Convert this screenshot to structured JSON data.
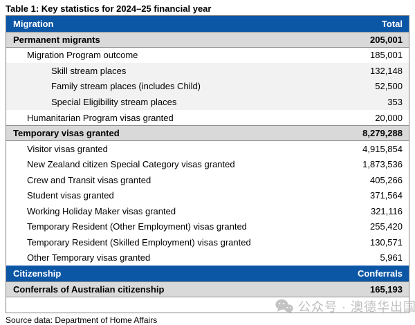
{
  "title": "Table 1: Key statistics for 2024–25 financial year",
  "source_note": "Source data: Department of Home Affairs",
  "colors": {
    "header_blue": "#0c56a6",
    "section_row_gray": "#d9d9d9",
    "subgroup_row_gray": "#f2f2f2"
  },
  "table": {
    "sections": [
      {
        "header": {
          "label": "Migration",
          "value_label": "Total"
        },
        "rows": [
          {
            "label": "Permanent migrants",
            "value": "205,001",
            "level": 0,
            "bold": true,
            "bg": "section"
          },
          {
            "label": "Migration Program outcome",
            "value": "185,001",
            "level": 1,
            "bold": false,
            "bg": "white"
          },
          {
            "label": "Skill stream places",
            "value": "132,148",
            "level": 2,
            "bold": false,
            "bg": "light"
          },
          {
            "label": "Family stream places (includes Child)",
            "value": "52,500",
            "level": 2,
            "bold": false,
            "bg": "light"
          },
          {
            "label": "Special Eligibility stream places",
            "value": "353",
            "level": 2,
            "bold": false,
            "bg": "light"
          },
          {
            "label": "Humanitarian Program visas granted",
            "value": "20,000",
            "level": 1,
            "bold": false,
            "bg": "white"
          },
          {
            "label": "Temporary visas granted",
            "value": "8,279,288",
            "level": 0,
            "bold": true,
            "bg": "section"
          },
          {
            "label": "Visitor visas granted",
            "value": "4,915,854",
            "level": 1,
            "bold": false,
            "bg": "white"
          },
          {
            "label": "New Zealand citizen Special Category visas granted",
            "value": "1,873,536",
            "level": 1,
            "bold": false,
            "bg": "white"
          },
          {
            "label": "Crew and Transit visas granted",
            "value": "405,266",
            "level": 1,
            "bold": false,
            "bg": "white"
          },
          {
            "label": "Student visas granted",
            "value": "371,564",
            "level": 1,
            "bold": false,
            "bg": "white"
          },
          {
            "label": "Working Holiday Maker visas granted",
            "value": "321,116",
            "level": 1,
            "bold": false,
            "bg": "white"
          },
          {
            "label": "Temporary Resident (Other Employment) visas granted",
            "value": "255,420",
            "level": 1,
            "bold": false,
            "bg": "white"
          },
          {
            "label": "Temporary Resident (Skilled Employment) visas granted",
            "value": "130,571",
            "level": 1,
            "bold": false,
            "bg": "white"
          },
          {
            "label": "Other Temporary visas granted",
            "value": "5,961",
            "level": 1,
            "bold": false,
            "bg": "white"
          }
        ]
      },
      {
        "header": {
          "label": "Citizenship",
          "value_label": "Conferrals"
        },
        "rows": [
          {
            "label": "Conferrals of Australian citizenship",
            "value": "165,193",
            "level": 0,
            "bold": true,
            "bg": "section"
          }
        ]
      }
    ]
  },
  "watermark": {
    "icon": "wechat-icon",
    "text": "公众号 · 澳德华出国"
  }
}
